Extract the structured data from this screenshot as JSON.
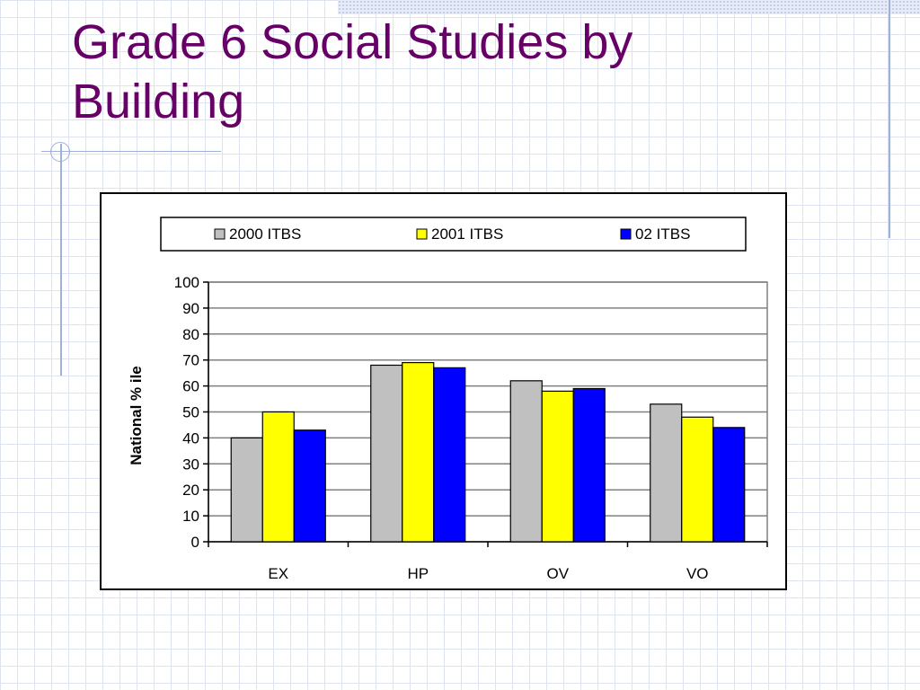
{
  "slide": {
    "title": "Grade 6 Social Studies by Building"
  },
  "colors": {
    "title": "#660066",
    "series": [
      "#c0c0c0",
      "#ffff00",
      "#0000ff"
    ]
  },
  "chart_data": {
    "type": "bar",
    "title": "",
    "xlabel": "",
    "ylabel": "National % ile",
    "categories": [
      "EX",
      "HP",
      "OV",
      "VO"
    ],
    "series": [
      {
        "name": "2000 ITBS",
        "values": [
          40,
          68,
          62,
          53
        ]
      },
      {
        "name": "2001 ITBS",
        "values": [
          50,
          69,
          58,
          48
        ]
      },
      {
        "name": "02 ITBS",
        "values": [
          43,
          67,
          59,
          44
        ]
      }
    ],
    "ylim": [
      0,
      100
    ],
    "yticks": [
      0,
      10,
      20,
      30,
      40,
      50,
      60,
      70,
      80,
      90,
      100
    ],
    "grid": true,
    "legend": "top"
  }
}
